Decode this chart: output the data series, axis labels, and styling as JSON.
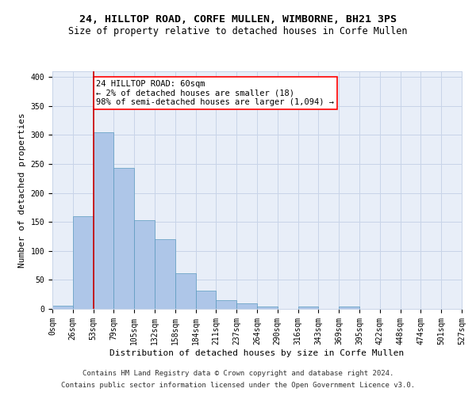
{
  "title_line1": "24, HILLTOP ROAD, CORFE MULLEN, WIMBORNE, BH21 3PS",
  "title_line2": "Size of property relative to detached houses in Corfe Mullen",
  "xlabel": "Distribution of detached houses by size in Corfe Mullen",
  "ylabel": "Number of detached properties",
  "footnote1": "Contains HM Land Registry data © Crown copyright and database right 2024.",
  "footnote2": "Contains public sector information licensed under the Open Government Licence v3.0.",
  "bin_labels": [
    "0sqm",
    "26sqm",
    "53sqm",
    "79sqm",
    "105sqm",
    "132sqm",
    "158sqm",
    "184sqm",
    "211sqm",
    "237sqm",
    "264sqm",
    "290sqm",
    "316sqm",
    "343sqm",
    "369sqm",
    "395sqm",
    "422sqm",
    "448sqm",
    "474sqm",
    "501sqm",
    "527sqm"
  ],
  "bar_values": [
    5,
    160,
    305,
    243,
    153,
    120,
    62,
    31,
    15,
    9,
    4,
    0,
    4,
    0,
    4,
    0,
    0,
    0,
    0,
    0
  ],
  "bar_color": "#aec6e8",
  "bar_edge_color": "#5a9abf",
  "red_line_x": 2,
  "annotation_text": "24 HILLTOP ROAD: 60sqm\n← 2% of detached houses are smaller (18)\n98% of semi-detached houses are larger (1,094) →",
  "annotation_box_color": "white",
  "annotation_box_edge_color": "red",
  "red_line_color": "#cc0000",
  "ylim": [
    0,
    410
  ],
  "yticks": [
    0,
    50,
    100,
    150,
    200,
    250,
    300,
    350,
    400
  ],
  "grid_color": "#c8d4e8",
  "bg_color": "#e8eef8",
  "title_fontsize": 9.5,
  "subtitle_fontsize": 8.5,
  "axis_label_fontsize": 8,
  "tick_fontsize": 7,
  "annotation_fontsize": 7.5,
  "footnote_fontsize": 6.5
}
